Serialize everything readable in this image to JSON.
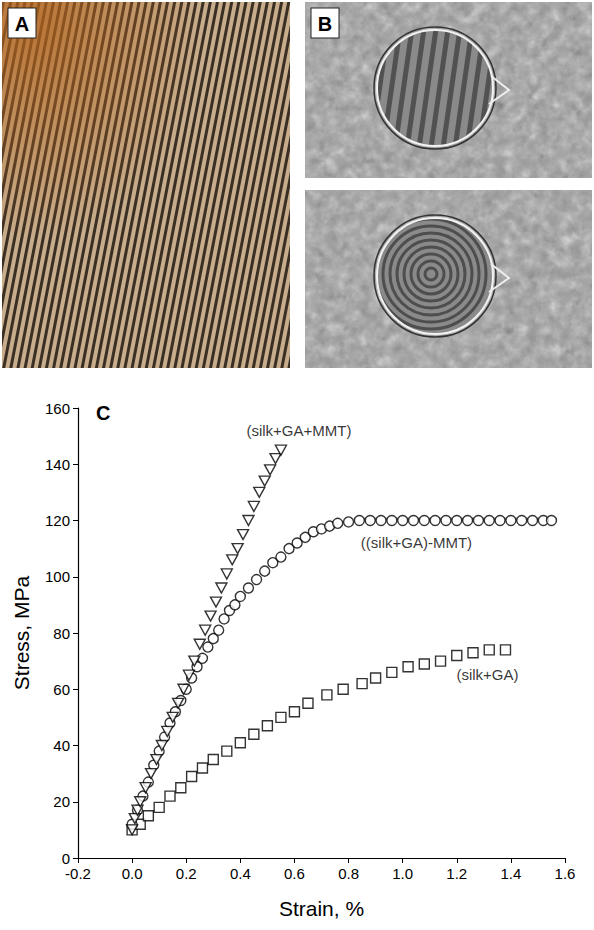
{
  "panel_labels": [
    "A",
    "B",
    "C"
  ],
  "chart_data": {
    "type": "scatter",
    "x_label": "Strain, %",
    "y_label": "Stress, MPa",
    "xlim": [
      -0.2,
      1.6
    ],
    "xticks": [
      -0.2,
      {
        "value": 0,
        "label": "0.0"
      },
      0.2,
      0.4,
      0.6,
      0.8,
      {
        "value": 1,
        "label": "1.0"
      },
      1.2,
      1.4,
      1.6
    ],
    "ylim": [
      0,
      160
    ],
    "yticks": [
      0,
      20,
      40,
      60,
      80,
      100,
      120,
      140,
      160
    ],
    "grid": false,
    "series": [
      {
        "name": "(silk+GA+MMT)",
        "color": "#000000",
        "marker": "triangle_down",
        "x": [
          0.0,
          0.01,
          0.02,
          0.03,
          0.05,
          0.07,
          0.09,
          0.11,
          0.13,
          0.15,
          0.17,
          0.19,
          0.21,
          0.23,
          0.25,
          0.27,
          0.29,
          0.31,
          0.33,
          0.35,
          0.37,
          0.39,
          0.41,
          0.43,
          0.45,
          0.47,
          0.49,
          0.51,
          0.53,
          0.55
        ],
        "values": [
          10,
          14,
          17,
          20,
          25,
          30,
          35,
          40,
          45,
          50,
          55,
          60,
          65,
          70,
          76,
          81,
          86,
          91,
          96,
          101,
          106,
          110,
          115,
          120,
          125,
          130,
          134,
          138,
          142,
          145
        ]
      },
      {
        "name": "((silk+GA)-MMT)",
        "color": "#000000",
        "marker": "circle",
        "x": [
          0.0,
          0.02,
          0.04,
          0.06,
          0.08,
          0.1,
          0.12,
          0.14,
          0.16,
          0.18,
          0.2,
          0.22,
          0.24,
          0.26,
          0.28,
          0.3,
          0.32,
          0.34,
          0.36,
          0.38,
          0.4,
          0.43,
          0.46,
          0.49,
          0.52,
          0.55,
          0.58,
          0.61,
          0.64,
          0.67,
          0.7,
          0.73,
          0.76,
          0.8,
          0.84,
          0.88,
          0.92,
          0.96,
          1.0,
          1.04,
          1.08,
          1.12,
          1.16,
          1.2,
          1.24,
          1.28,
          1.32,
          1.36,
          1.4,
          1.44,
          1.48,
          1.52,
          1.55
        ],
        "values": [
          12,
          17,
          22,
          27,
          33,
          38,
          43,
          48,
          52,
          56,
          60,
          64,
          68,
          71,
          75,
          78,
          81,
          85,
          88,
          90,
          93,
          96,
          99,
          102,
          105,
          107,
          110,
          112,
          114,
          116,
          117,
          118,
          119,
          119.5,
          120,
          120,
          120,
          120,
          120,
          120,
          120,
          120,
          120,
          120,
          120,
          120,
          120,
          120,
          120,
          120,
          120,
          120,
          120
        ]
      },
      {
        "name": "(silk+GA)",
        "color": "#000000",
        "marker": "square",
        "x": [
          0.0,
          0.03,
          0.06,
          0.1,
          0.14,
          0.18,
          0.22,
          0.26,
          0.3,
          0.35,
          0.4,
          0.45,
          0.5,
          0.55,
          0.6,
          0.65,
          0.72,
          0.78,
          0.85,
          0.9,
          0.96,
          1.02,
          1.08,
          1.14,
          1.2,
          1.26,
          1.32,
          1.38
        ],
        "values": [
          10,
          12,
          15,
          18,
          22,
          25,
          29,
          32,
          35,
          38,
          41,
          44,
          47,
          50,
          52,
          55,
          58,
          60,
          62,
          64,
          66,
          68,
          69,
          70,
          72,
          73,
          74,
          74
        ]
      }
    ]
  }
}
